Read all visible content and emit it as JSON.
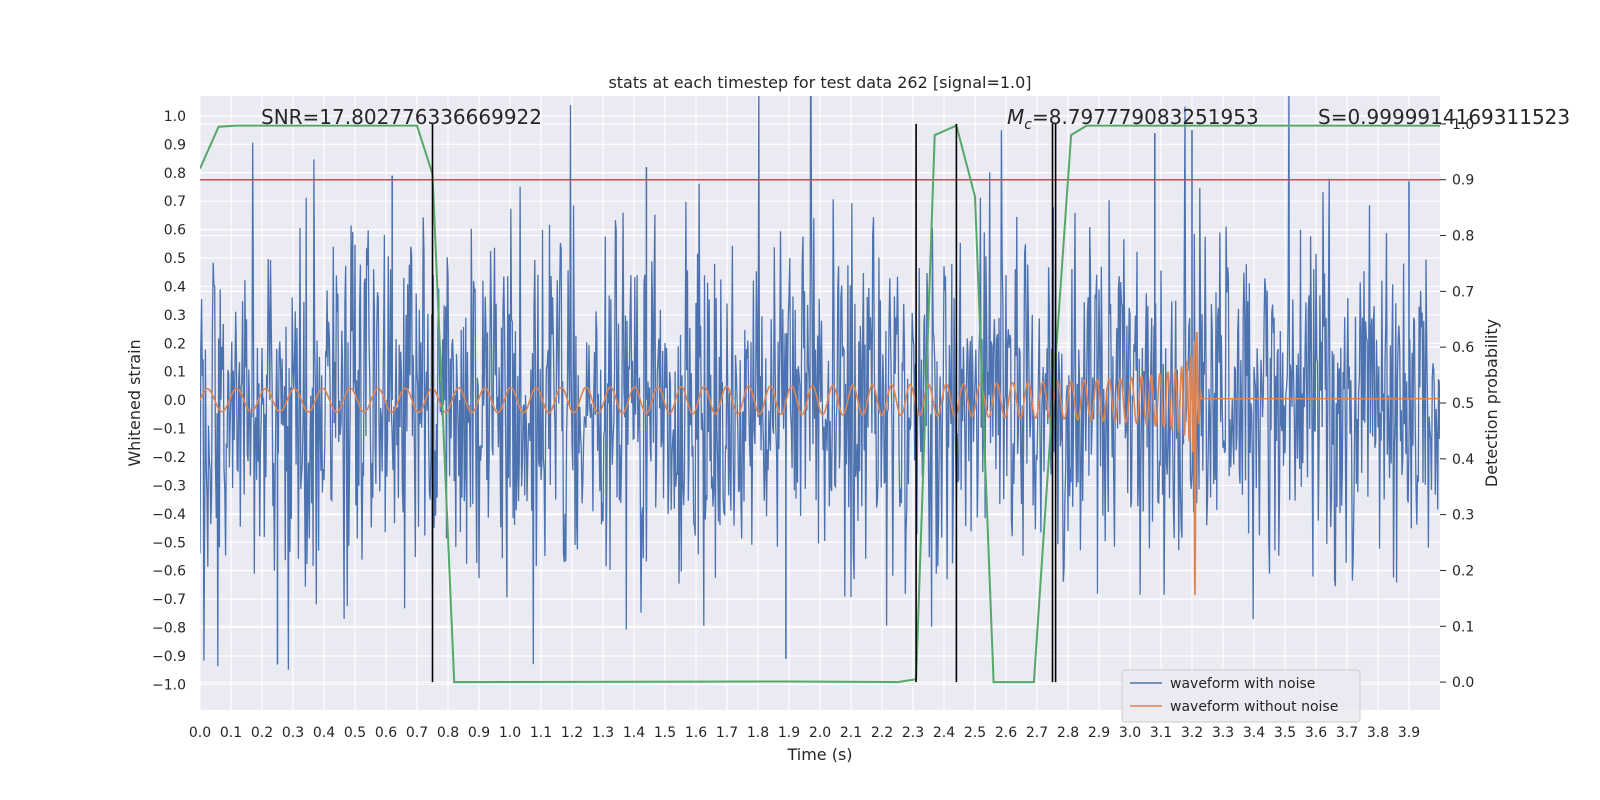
{
  "chart_data": {
    "type": "line",
    "title": "stats at each timestep for test data 262 [signal=1.0]",
    "xlabel": "Time (s)",
    "ylabel": "Whitened strain",
    "y2label": "Detection probability",
    "xlim": [
      0.0,
      4.0
    ],
    "ylim": [
      -1.09,
      1.07
    ],
    "y2lim": [
      -0.05,
      1.05
    ],
    "x_ticks": [
      "0.0",
      "0.1",
      "0.2",
      "0.3",
      "0.4",
      "0.5",
      "0.6",
      "0.7",
      "0.8",
      "0.9",
      "1.0",
      "1.1",
      "1.2",
      "1.3",
      "1.4",
      "1.5",
      "1.6",
      "1.7",
      "1.8",
      "1.9",
      "2.0",
      "2.1",
      "2.2",
      "2.3",
      "2.4",
      "2.5",
      "2.6",
      "2.7",
      "2.8",
      "2.9",
      "3.0",
      "3.1",
      "3.2",
      "3.3",
      "3.4",
      "3.5",
      "3.6",
      "3.7",
      "3.8",
      "3.9"
    ],
    "y_ticks": [
      "1.0",
      "0.9",
      "0.8",
      "0.7",
      "0.6",
      "0.5",
      "0.4",
      "0.3",
      "0.2",
      "0.1",
      "0.0",
      "−0.1",
      "−0.2",
      "−0.3",
      "−0.4",
      "−0.5",
      "−0.6",
      "−0.7",
      "−0.8",
      "−0.9",
      "−1.0"
    ],
    "y2_ticks": [
      "1.0",
      "0.9",
      "0.8",
      "0.7",
      "0.6",
      "0.5",
      "0.4",
      "0.3",
      "0.2",
      "0.1",
      "0.0"
    ],
    "grid": true,
    "legend_position": "bottom-right",
    "annotations": {
      "snr": "SNR=17.802776336669922",
      "mc_symbol": "M",
      "mc_sub": "c",
      "mc_value": "=8.797779083251953",
      "s": "S=0.9999914169311523"
    },
    "series": [
      {
        "name": "waveform with noise",
        "color": "#4c72b0",
        "kind": "noisy strain, roughly uniform amplitude",
        "amplitude_typical": 0.35,
        "peaks": [
          [
            0.25,
            -0.93
          ],
          [
            0.62,
            0.79
          ],
          [
            1.44,
            0.82
          ],
          [
            1.89,
            -0.91
          ],
          [
            3.08,
            0.94
          ],
          [
            3.2,
            0.95
          ],
          [
            3.9,
            0.77
          ]
        ]
      },
      {
        "name": "waveform without noise",
        "color": "#dd8452",
        "kind": "chirp",
        "amplitude_start": 0.04,
        "amplitude_end": 0.47,
        "merger_time": 3.21,
        "min_value": -0.65,
        "post_merger_offset": 0.005
      },
      {
        "name": "detection probability",
        "color": "#55a868",
        "axis": "right",
        "x": [
          0.0,
          0.06,
          0.12,
          0.7,
          0.75,
          0.82,
          1.9,
          2.25,
          2.31,
          2.37,
          2.44,
          2.5,
          2.56,
          2.69,
          2.75,
          2.81,
          2.86,
          3.9,
          4.0
        ],
        "y": [
          0.92,
          0.995,
          0.997,
          0.997,
          0.91,
          0.0,
          0.001,
          0.0,
          0.005,
          0.98,
          0.997,
          0.87,
          0.0,
          0.0,
          0.5,
          0.98,
          0.997,
          0.997,
          0.997
        ]
      }
    ],
    "threshold": {
      "value": 0.9,
      "axis": "right",
      "color": "#c44e52"
    },
    "vlines": {
      "x": [
        0.75,
        2.31,
        2.44,
        2.75,
        2.76
      ],
      "color": "#000000"
    }
  },
  "legend": {
    "with_noise": "waveform with noise",
    "without_noise": "waveform without noise"
  }
}
